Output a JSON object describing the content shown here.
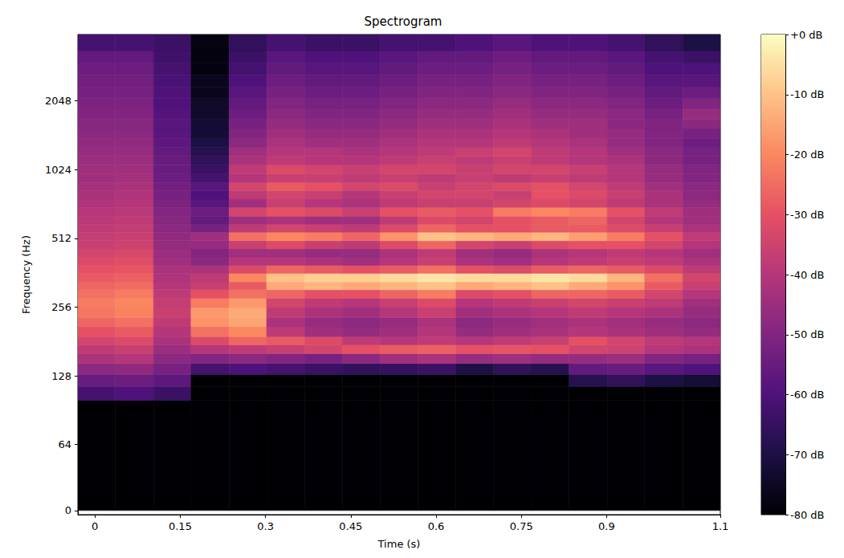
{
  "chart_data": {
    "type": "spectrogram",
    "title": "Spectrogram",
    "x_label": "Time (s)",
    "y_label": "Frequency (Hz)",
    "xlim": [
      -0.03,
      1.1
    ],
    "xticks": [
      0,
      0.15,
      0.3,
      0.45,
      0.6,
      0.75,
      0.9,
      1.1
    ],
    "ylim": [
      -4,
      4000
    ],
    "yticks": [
      0,
      64,
      128,
      256,
      512,
      1024,
      2048
    ],
    "log": "y",
    "color": "magma",
    "time_edges": [
      -0.03,
      0.036,
      0.103,
      0.169,
      0.236,
      0.302,
      0.369,
      0.435,
      0.502,
      0.568,
      0.635,
      0.701,
      0.768,
      0.834,
      0.901,
      0.967,
      1.034,
      1.1
    ],
    "frequency_edges": [
      0,
      100,
      115,
      130,
      145,
      160,
      175,
      190,
      210,
      230,
      255,
      280,
      305,
      330,
      360,
      390,
      425,
      460,
      500,
      545,
      590,
      640,
      700,
      760,
      830,
      900,
      980,
      1070,
      1170,
      1280,
      1400,
      1550,
      1700,
      1900,
      2100,
      2350,
      2650,
      3000,
      3400,
      4000
    ],
    "cells": [
      [
        -80,
        -80,
        -80,
        -80,
        -80,
        -80,
        -80,
        -80,
        -80,
        -80,
        -80,
        -80,
        -80,
        -80,
        -80,
        -80,
        -80
      ],
      [
        -62,
        -60,
        -64,
        -80,
        -80,
        -80,
        -80,
        -80,
        -80,
        -80,
        -80,
        -80,
        -80,
        -80,
        -80,
        -80,
        -80
      ],
      [
        -55,
        -54,
        -57,
        -80,
        -80,
        -80,
        -80,
        -80,
        -80,
        -80,
        -80,
        -80,
        -80,
        -68,
        -66,
        -70,
        -72
      ],
      [
        -48,
        -47,
        -52,
        -62,
        -60,
        -62,
        -64,
        -66,
        -65,
        -64,
        -70,
        -66,
        -68,
        -56,
        -55,
        -58,
        -60
      ],
      [
        -42,
        -40,
        -48,
        -50,
        -48,
        -50,
        -52,
        -48,
        -44,
        -42,
        -46,
        -44,
        -46,
        -46,
        -45,
        -50,
        -52
      ],
      [
        -38,
        -36,
        -45,
        -40,
        -38,
        -36,
        -34,
        -30,
        -28,
        -27,
        -30,
        -29,
        -30,
        -34,
        -35,
        -40,
        -42
      ],
      [
        -34,
        -32,
        -42,
        -32,
        -26,
        -28,
        -32,
        -38,
        -40,
        -38,
        -40,
        -38,
        -36,
        -30,
        -34,
        -38,
        -40
      ],
      [
        -30,
        -28,
        -40,
        -24,
        -20,
        -38,
        -44,
        -46,
        -44,
        -40,
        -46,
        -44,
        -42,
        -40,
        -42,
        -44,
        -46
      ],
      [
        -26,
        -24,
        -38,
        -18,
        -15,
        -42,
        -46,
        -48,
        -46,
        -42,
        -48,
        -46,
        -44,
        -42,
        -44,
        -46,
        -48
      ],
      [
        -23,
        -21,
        -36,
        -17,
        -14,
        -38,
        -42,
        -44,
        -40,
        -36,
        -44,
        -42,
        -40,
        -38,
        -40,
        -42,
        -46
      ],
      [
        -22,
        -20,
        -37,
        -22,
        -17,
        -34,
        -38,
        -40,
        -36,
        -32,
        -40,
        -38,
        -36,
        -34,
        -36,
        -38,
        -44
      ],
      [
        -24,
        -22,
        -38,
        -30,
        -24,
        -26,
        -30,
        -30,
        -26,
        -22,
        -32,
        -30,
        -26,
        -26,
        -28,
        -34,
        -40
      ],
      [
        -26,
        -25,
        -40,
        -36,
        -28,
        -14,
        -12,
        -14,
        -12,
        -10,
        -14,
        -12,
        -10,
        -14,
        -18,
        -28,
        -36
      ],
      [
        -28,
        -27,
        -41,
        -38,
        -20,
        -10,
        -8,
        -8,
        -6,
        -4,
        -6,
        -6,
        -4,
        -6,
        -12,
        -24,
        -34
      ],
      [
        -30,
        -29,
        -42,
        -42,
        -32,
        -26,
        -28,
        -30,
        -28,
        -24,
        -30,
        -32,
        -28,
        -26,
        -28,
        -32,
        -38
      ],
      [
        -32,
        -31,
        -44,
        -48,
        -40,
        -40,
        -42,
        -44,
        -40,
        -36,
        -42,
        -44,
        -40,
        -38,
        -36,
        -38,
        -42
      ],
      [
        -34,
        -33,
        -45,
        -50,
        -44,
        -44,
        -46,
        -46,
        -42,
        -38,
        -44,
        -46,
        -42,
        -40,
        -38,
        -40,
        -44
      ],
      [
        -36,
        -35,
        -46,
        -46,
        -36,
        -32,
        -36,
        -38,
        -32,
        -26,
        -34,
        -36,
        -32,
        -30,
        -30,
        -34,
        -40
      ],
      [
        -37,
        -36,
        -47,
        -44,
        -24,
        -20,
        -22,
        -26,
        -18,
        -10,
        -12,
        -14,
        -12,
        -16,
        -22,
        -30,
        -38
      ],
      [
        -38,
        -37,
        -48,
        -52,
        -38,
        -34,
        -36,
        -38,
        -32,
        -26,
        -30,
        -30,
        -28,
        -28,
        -32,
        -36,
        -42
      ],
      [
        -39,
        -38,
        -49,
        -56,
        -44,
        -42,
        -44,
        -44,
        -38,
        -32,
        -34,
        -30,
        -28,
        -26,
        -34,
        -40,
        -44
      ],
      [
        -40,
        -39,
        -50,
        -54,
        -34,
        -30,
        -32,
        -36,
        -30,
        -28,
        -30,
        -22,
        -20,
        -22,
        -30,
        -38,
        -44
      ],
      [
        -41,
        -40,
        -51,
        -58,
        -44,
        -36,
        -40,
        -42,
        -38,
        -36,
        -36,
        -34,
        -32,
        -34,
        -38,
        -42,
        -46
      ],
      [
        -42,
        -41,
        -52,
        -60,
        -38,
        -34,
        -36,
        -40,
        -36,
        -34,
        -34,
        -36,
        -30,
        -32,
        -36,
        -42,
        -48
      ],
      [
        -43,
        -42,
        -53,
        -58,
        -34,
        -28,
        -30,
        -34,
        -32,
        -36,
        -34,
        -32,
        -30,
        -34,
        -38,
        -44,
        -48
      ],
      [
        -44,
        -43,
        -54,
        -62,
        -40,
        -36,
        -36,
        -38,
        -36,
        -38,
        -36,
        -38,
        -36,
        -38,
        -40,
        -46,
        -50
      ],
      [
        -44,
        -44,
        -55,
        -64,
        -38,
        -32,
        -34,
        -36,
        -34,
        -34,
        -36,
        -34,
        -34,
        -36,
        -40,
        -46,
        -50
      ],
      [
        -45,
        -45,
        -55,
        -66,
        -42,
        -38,
        -40,
        -40,
        -38,
        -36,
        -38,
        -36,
        -38,
        -40,
        -42,
        -48,
        -52
      ],
      [
        -46,
        -46,
        -56,
        -68,
        -44,
        -40,
        -40,
        -42,
        -40,
        -38,
        -36,
        -34,
        -38,
        -40,
        -44,
        -48,
        -52
      ],
      [
        -47,
        -47,
        -57,
        -70,
        -48,
        -42,
        -44,
        -44,
        -42,
        -40,
        -40,
        -38,
        -40,
        -42,
        -46,
        -50,
        -54
      ],
      [
        -48,
        -48,
        -58,
        -72,
        -50,
        -44,
        -46,
        -46,
        -44,
        -42,
        -42,
        -40,
        -42,
        -44,
        -46,
        -50,
        -52
      ],
      [
        -49,
        -49,
        -58,
        -72,
        -52,
        -46,
        -48,
        -48,
        -46,
        -44,
        -44,
        -42,
        -44,
        -44,
        -48,
        -50,
        -48
      ],
      [
        -50,
        -50,
        -59,
        -74,
        -54,
        -48,
        -50,
        -50,
        -48,
        -46,
        -46,
        -44,
        -46,
        -46,
        -48,
        -52,
        -46
      ],
      [
        -51,
        -51,
        -60,
        -74,
        -56,
        -50,
        -52,
        -52,
        -50,
        -48,
        -48,
        -46,
        -48,
        -48,
        -50,
        -54,
        -50
      ],
      [
        -52,
        -52,
        -60,
        -76,
        -58,
        -52,
        -54,
        -54,
        -52,
        -50,
        -50,
        -48,
        -50,
        -50,
        -52,
        -56,
        -54
      ],
      [
        -53,
        -53,
        -61,
        -76,
        -60,
        -54,
        -56,
        -56,
        -54,
        -52,
        -52,
        -50,
        -52,
        -52,
        -54,
        -58,
        -58
      ],
      [
        -54,
        -54,
        -62,
        -78,
        -62,
        -56,
        -58,
        -58,
        -56,
        -54,
        -54,
        -52,
        -54,
        -54,
        -56,
        -60,
        -60
      ],
      [
        -56,
        -56,
        -63,
        -78,
        -64,
        -58,
        -60,
        -60,
        -58,
        -56,
        -56,
        -54,
        -56,
        -56,
        -58,
        -62,
        -64
      ],
      [
        -62,
        -62,
        -64,
        -78,
        -66,
        -62,
        -64,
        -64,
        -62,
        -62,
        -60,
        -58,
        -60,
        -60,
        -62,
        -66,
        -70
      ]
    ],
    "color_range": [
      -80,
      0
    ],
    "color_ticks": [
      {
        "value": 0,
        "label": "+0 dB"
      },
      {
        "value": -10,
        "label": "-10 dB"
      },
      {
        "value": -20,
        "label": "-20 dB"
      },
      {
        "value": -30,
        "label": "-30 dB"
      },
      {
        "value": -40,
        "label": "-40 dB"
      },
      {
        "value": -50,
        "label": "-50 dB"
      },
      {
        "value": -60,
        "label": "-60 dB"
      },
      {
        "value": -70,
        "label": "-70 dB"
      },
      {
        "value": -80,
        "label": "-80 dB"
      }
    ]
  }
}
